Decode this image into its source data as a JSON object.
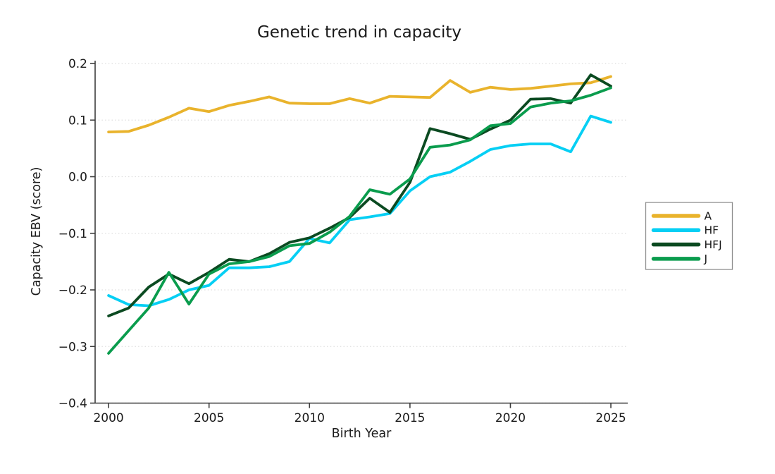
{
  "title": "Genetic trend in capacity",
  "chart_data": {
    "type": "line",
    "title": "Genetic trend in capacity",
    "xlabel": "Birth Year",
    "ylabel": "Capacity EBV (score)",
    "x": [
      2000,
      2001,
      2002,
      2003,
      2004,
      2005,
      2006,
      2007,
      2008,
      2009,
      2010,
      2011,
      2012,
      2013,
      2014,
      2015,
      2016,
      2017,
      2018,
      2019,
      2020,
      2021,
      2022,
      2023,
      2024,
      2025
    ],
    "series": [
      {
        "name": "A",
        "color": "#E9B32C",
        "values": [
          0.079,
          0.08,
          0.091,
          0.105,
          0.121,
          0.115,
          0.126,
          0.133,
          0.141,
          0.13,
          0.129,
          0.129,
          0.138,
          0.13,
          0.142,
          0.141,
          0.14,
          0.17,
          0.149,
          0.158,
          0.154,
          0.156,
          0.16,
          0.164,
          0.166,
          0.177
        ]
      },
      {
        "name": "HF",
        "color": "#06CFF4",
        "values": [
          -0.21,
          -0.226,
          -0.228,
          -0.217,
          -0.2,
          -0.192,
          -0.161,
          -0.161,
          -0.159,
          -0.15,
          -0.109,
          -0.117,
          -0.076,
          -0.071,
          -0.065,
          -0.025,
          0.0,
          0.008,
          0.027,
          0.048,
          0.055,
          0.058,
          0.058,
          0.044,
          0.107,
          0.096
        ]
      },
      {
        "name": "HFJ",
        "color": "#0B4A21",
        "values": [
          -0.246,
          -0.232,
          -0.195,
          -0.172,
          -0.189,
          -0.169,
          -0.146,
          -0.15,
          -0.136,
          -0.116,
          -0.108,
          -0.091,
          -0.072,
          -0.038,
          -0.063,
          -0.01,
          0.085,
          0.076,
          0.066,
          0.084,
          0.1,
          0.137,
          0.138,
          0.13,
          0.18,
          0.16
        ]
      },
      {
        "name": "J",
        "color": "#0A9C4D",
        "values": [
          -0.312,
          -0.272,
          -0.232,
          -0.169,
          -0.225,
          -0.172,
          -0.154,
          -0.15,
          -0.141,
          -0.122,
          -0.118,
          -0.098,
          -0.07,
          -0.023,
          -0.031,
          -0.004,
          0.052,
          0.056,
          0.065,
          0.09,
          0.094,
          0.123,
          0.13,
          0.134,
          0.144,
          0.157
        ]
      }
    ],
    "xlim": [
      1999.33,
      2025.84
    ],
    "ylim": [
      -0.4,
      0.205
    ],
    "xticks": {
      "values": [
        2000,
        2005,
        2010,
        2015,
        2020,
        2025
      ],
      "labels": [
        "2000",
        "2005",
        "2010",
        "2015",
        "2020",
        "2025"
      ]
    },
    "yticks": {
      "values": [
        0.2,
        0.1,
        0.0,
        -0.1,
        -0.2,
        -0.3,
        -0.4
      ],
      "labels": [
        "0.2",
        "0.1",
        "0.0",
        "−0.1",
        "−0.2",
        "−0.3",
        "−0.4"
      ]
    },
    "grid": "horizontal-dotted",
    "legend": {
      "position": "right-outside",
      "entries": [
        "A",
        "HF",
        "HFJ",
        "J"
      ]
    },
    "style": {
      "grid_color": "#dedede",
      "spine_color": "#3d3d3d",
      "legend_border_color": "#8f8f8f",
      "line_width": 3.8
    }
  }
}
